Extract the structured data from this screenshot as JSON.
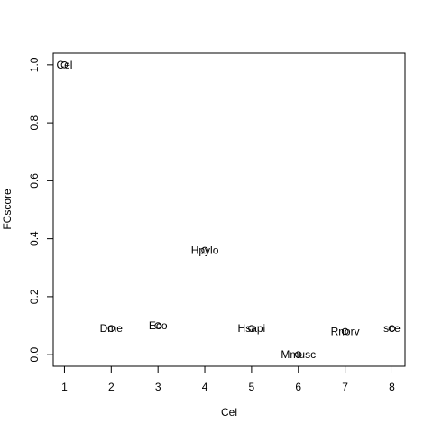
{
  "chart_data": {
    "type": "scatter",
    "xlabel": "Cel",
    "ylabel": "FCscore",
    "xlim": [
      0.76,
      8.28
    ],
    "ylim": [
      -0.04,
      1.04
    ],
    "x_ticks": [
      1,
      2,
      3,
      4,
      5,
      6,
      7,
      8
    ],
    "y_ticks": [
      0.0,
      0.2,
      0.4,
      0.6,
      0.8,
      1.0
    ],
    "y_tick_labels": [
      "0.0",
      "0.2",
      "0.4",
      "0.6",
      "0.8",
      "1.0"
    ],
    "points": [
      {
        "x": 1,
        "y": 1.0,
        "label": "Cel"
      },
      {
        "x": 2,
        "y": 0.09,
        "label": "Dme"
      },
      {
        "x": 3,
        "y": 0.1,
        "label": "Eco"
      },
      {
        "x": 4,
        "y": 0.36,
        "label": "Hpylo"
      },
      {
        "x": 5,
        "y": 0.09,
        "label": "Hsapi"
      },
      {
        "x": 6,
        "y": 0.0,
        "label": "Mmusc"
      },
      {
        "x": 7,
        "y": 0.08,
        "label": "Rnorv"
      },
      {
        "x": 8,
        "y": 0.09,
        "label": "sce"
      }
    ]
  }
}
